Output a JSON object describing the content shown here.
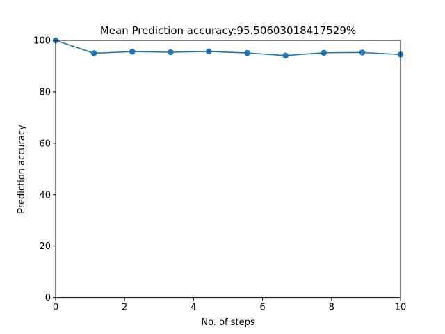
{
  "chart_data": {
    "type": "line",
    "title": "Mean Prediction accuracy:95.50603018417529%",
    "xlabel": "No. of steps",
    "ylabel": "Prediction accuracy",
    "xlim": [
      0,
      10
    ],
    "ylim": [
      0,
      100
    ],
    "xticks": [
      0,
      2,
      4,
      6,
      8,
      10
    ],
    "yticks": [
      0,
      20,
      40,
      60,
      80,
      100
    ],
    "grid": false,
    "series": [
      {
        "color": "#1f77b4",
        "marker": "circle",
        "x": [
          0,
          1.111,
          2.222,
          3.333,
          4.444,
          5.556,
          6.667,
          7.778,
          8.889,
          10
        ],
        "y": [
          100,
          95.0,
          95.6,
          95.4,
          95.7,
          95.1,
          94.1,
          95.2,
          95.3,
          94.5
        ]
      }
    ]
  }
}
